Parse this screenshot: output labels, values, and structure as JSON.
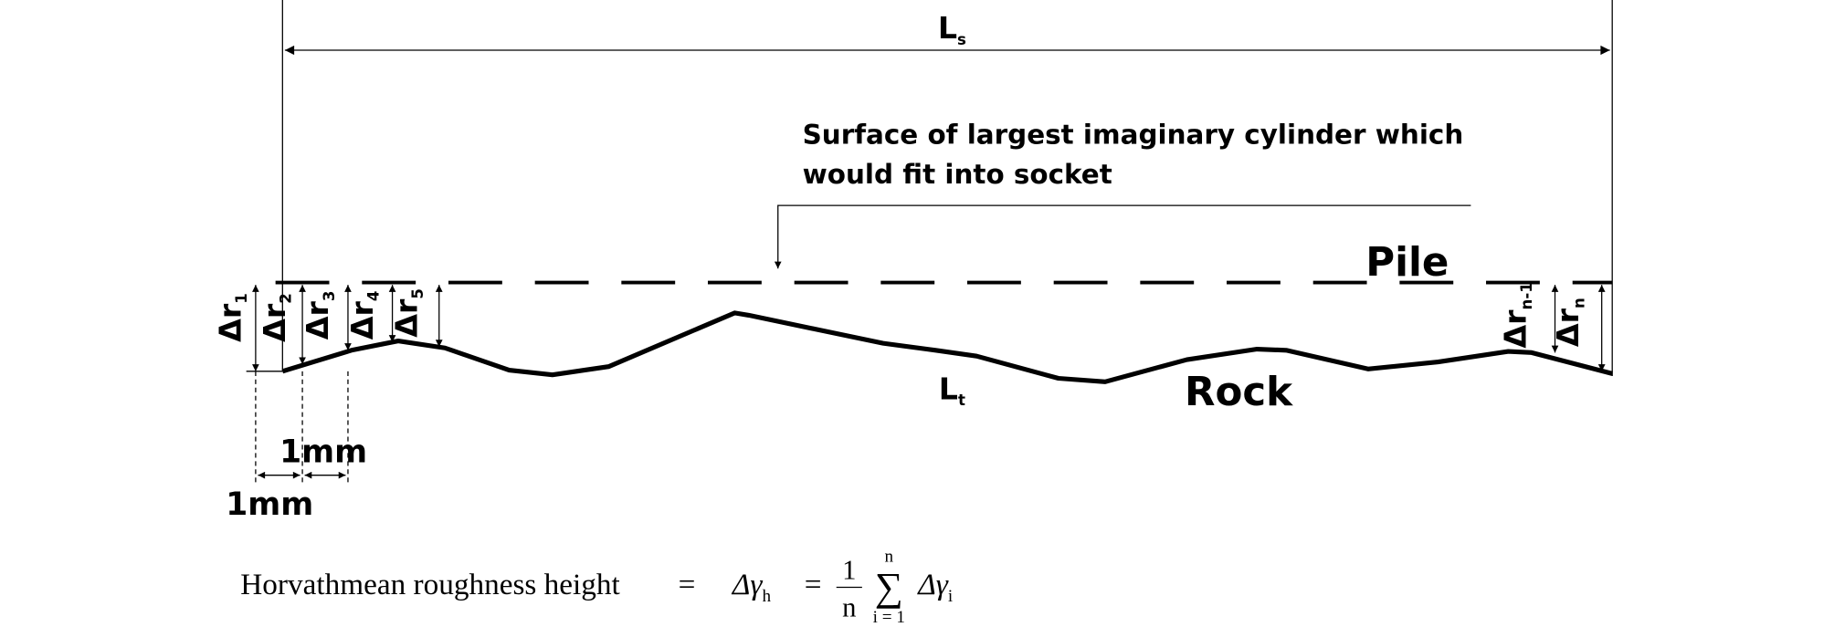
{
  "dimensions": {
    "total_length": {
      "symbol": "L",
      "subscript": "s"
    },
    "profile_length": {
      "symbol": "L",
      "subscript": "t"
    }
  },
  "annotation": {
    "lines": [
      "Surface of largest imaginary cylinder which",
      " would fit into socket"
    ]
  },
  "labels": {
    "pile": "Pile",
    "rock": "Rock"
  },
  "spacing": [
    "1mm",
    "1mm"
  ],
  "roughness_labels": [
    {
      "symbol": "Δr",
      "subscript": "1"
    },
    {
      "symbol": "Δr",
      "subscript": "2"
    },
    {
      "symbol": "Δr",
      "subscript": "3"
    },
    {
      "symbol": "Δr",
      "subscript": "4"
    },
    {
      "symbol": "Δr",
      "subscript": "5"
    },
    {
      "symbol": "Δr",
      "subscript": "n-1"
    },
    {
      "symbol": "Δr",
      "subscript": "n"
    }
  ],
  "formula": {
    "text": "Horvathmean  roughness  height",
    "equals": "=",
    "lhs": {
      "symbol": "Δγ",
      "subscript": "h"
    },
    "fraction": {
      "numerator": "1",
      "denominator": "n"
    },
    "sum": {
      "symbol": "∑",
      "upper": "n",
      "lower": "i = 1"
    },
    "term": {
      "symbol": "Δγ",
      "subscript": "i"
    }
  }
}
